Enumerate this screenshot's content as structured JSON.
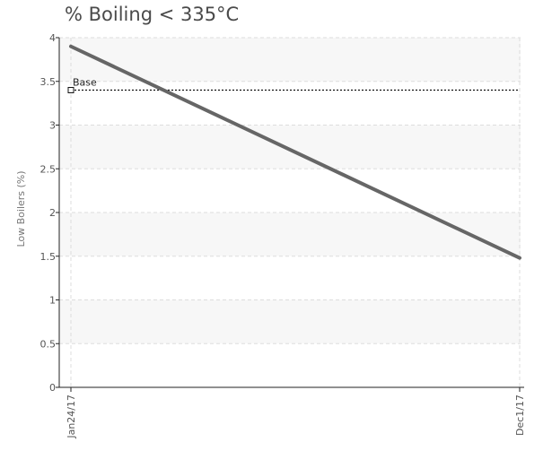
{
  "chart_data": {
    "type": "line",
    "title": "% Boiling < 335°C",
    "ylabel": "Low Boilers (%)",
    "xlabel": "",
    "ylim": [
      0,
      4
    ],
    "yticks": [
      0,
      0.5,
      1,
      1.5,
      2,
      2.5,
      3,
      3.5,
      4
    ],
    "ytick_labels": [
      "0",
      "0.5",
      "1",
      "1.5",
      "2",
      "2.5",
      "3",
      "3.5",
      "4"
    ],
    "categories": [
      "Jan24/17",
      "Dec1/17"
    ],
    "series": [
      {
        "values": [
          3.9,
          1.48
        ],
        "color": "#666666"
      }
    ],
    "reference_lines": [
      {
        "label": "Base",
        "value": 3.4,
        "style": "dashed",
        "color": "#111111"
      }
    ],
    "grid": true,
    "band_color": "#f7f7f7"
  }
}
